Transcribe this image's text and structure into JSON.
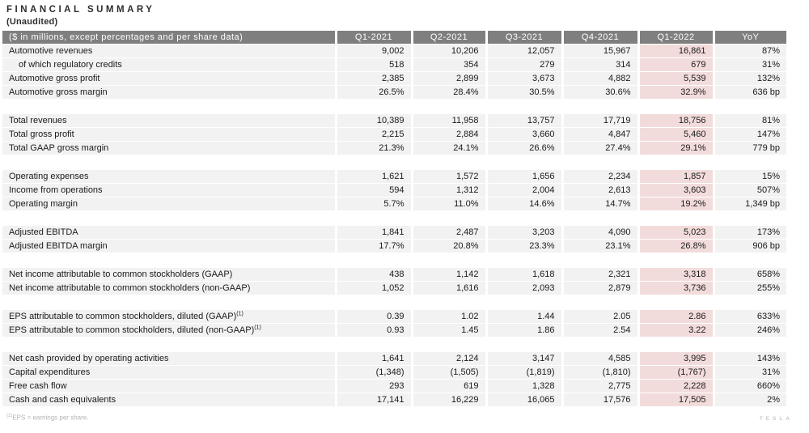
{
  "title": "FINANCIAL SUMMARY",
  "subtitle": "(Unaudited)",
  "footnote": {
    "sup": "(1)",
    "text": "EPS = earnings per share."
  },
  "watermark": "TESLA",
  "colors": {
    "header_bg": "#7f7f7f",
    "header_text": "#ffffff",
    "row_bg": "#f2f2f2",
    "highlight_bg": "#f2dcdb",
    "body_text": "#1a1a1a",
    "footnote_text": "#b3b3b3"
  },
  "table": {
    "columns": [
      "($ in millions, except percentages and per share data)",
      "Q1-2021",
      "Q2-2021",
      "Q3-2021",
      "Q4-2021",
      "Q1-2022",
      "YoY"
    ],
    "highlight_column": "Q1-2022",
    "sections": [
      {
        "name": "automotive",
        "rows": [
          {
            "label": "Automotive revenues",
            "values": [
              "9,002",
              "10,206",
              "12,057",
              "15,967",
              "16,861",
              "87%"
            ]
          },
          {
            "label": "of which regulatory credits",
            "indent": true,
            "values": [
              "518",
              "354",
              "279",
              "314",
              "679",
              "31%"
            ]
          },
          {
            "label": "Automotive gross profit",
            "values": [
              "2,385",
              "2,899",
              "3,673",
              "4,882",
              "5,539",
              "132%"
            ]
          },
          {
            "label": "Automotive gross margin",
            "values": [
              "26.5%",
              "28.4%",
              "30.5%",
              "30.6%",
              "32.9%",
              "636 bp"
            ]
          }
        ]
      },
      {
        "name": "totals",
        "rows": [
          {
            "label": "Total revenues",
            "values": [
              "10,389",
              "11,958",
              "13,757",
              "17,719",
              "18,756",
              "81%"
            ]
          },
          {
            "label": "Total gross profit",
            "values": [
              "2,215",
              "2,884",
              "3,660",
              "4,847",
              "5,460",
              "147%"
            ]
          },
          {
            "label": "Total GAAP gross margin",
            "values": [
              "21.3%",
              "24.1%",
              "26.6%",
              "27.4%",
              "29.1%",
              "779 bp"
            ]
          }
        ]
      },
      {
        "name": "operating",
        "rows": [
          {
            "label": "Operating expenses",
            "values": [
              "1,621",
              "1,572",
              "1,656",
              "2,234",
              "1,857",
              "15%"
            ]
          },
          {
            "label": "Income from operations",
            "values": [
              "594",
              "1,312",
              "2,004",
              "2,613",
              "3,603",
              "507%"
            ]
          },
          {
            "label": "Operating margin",
            "values": [
              "5.7%",
              "11.0%",
              "14.6%",
              "14.7%",
              "19.2%",
              "1,349 bp"
            ]
          }
        ]
      },
      {
        "name": "ebitda",
        "rows": [
          {
            "label": "Adjusted EBITDA",
            "values": [
              "1,841",
              "2,487",
              "3,203",
              "4,090",
              "5,023",
              "173%"
            ]
          },
          {
            "label": "Adjusted EBITDA margin",
            "values": [
              "17.7%",
              "20.8%",
              "23.3%",
              "23.1%",
              "26.8%",
              "906 bp"
            ]
          }
        ]
      },
      {
        "name": "net-income",
        "rows": [
          {
            "label": "Net income attributable to common stockholders (GAAP)",
            "values": [
              "438",
              "1,142",
              "1,618",
              "2,321",
              "3,318",
              "658%"
            ]
          },
          {
            "label": "Net income attributable to common stockholders (non-GAAP)",
            "values": [
              "1,052",
              "1,616",
              "2,093",
              "2,879",
              "3,736",
              "255%"
            ]
          }
        ]
      },
      {
        "name": "eps",
        "rows": [
          {
            "label": "EPS attributable to common stockholders, diluted (GAAP)",
            "sup": "(1)",
            "values": [
              "0.39",
              "1.02",
              "1.44",
              "2.05",
              "2.86",
              "633%"
            ]
          },
          {
            "label": "EPS attributable to common stockholders, diluted (non-GAAP)",
            "sup": "(1)",
            "values": [
              "0.93",
              "1.45",
              "1.86",
              "2.54",
              "3.22",
              "246%"
            ]
          }
        ]
      },
      {
        "name": "cash",
        "rows": [
          {
            "label": "Net cash provided by operating activities",
            "values": [
              "1,641",
              "2,124",
              "3,147",
              "4,585",
              "3,995",
              "143%"
            ]
          },
          {
            "label": "Capital expenditures",
            "values": [
              "(1,348)",
              "(1,505)",
              "(1,819)",
              "(1,810)",
              "(1,767)",
              "31%"
            ]
          },
          {
            "label": "Free cash flow",
            "values": [
              "293",
              "619",
              "1,328",
              "2,775",
              "2,228",
              "660%"
            ]
          },
          {
            "label": "Cash and cash equivalents",
            "values": [
              "17,141",
              "16,229",
              "16,065",
              "17,576",
              "17,505",
              "2%"
            ]
          }
        ]
      }
    ]
  }
}
